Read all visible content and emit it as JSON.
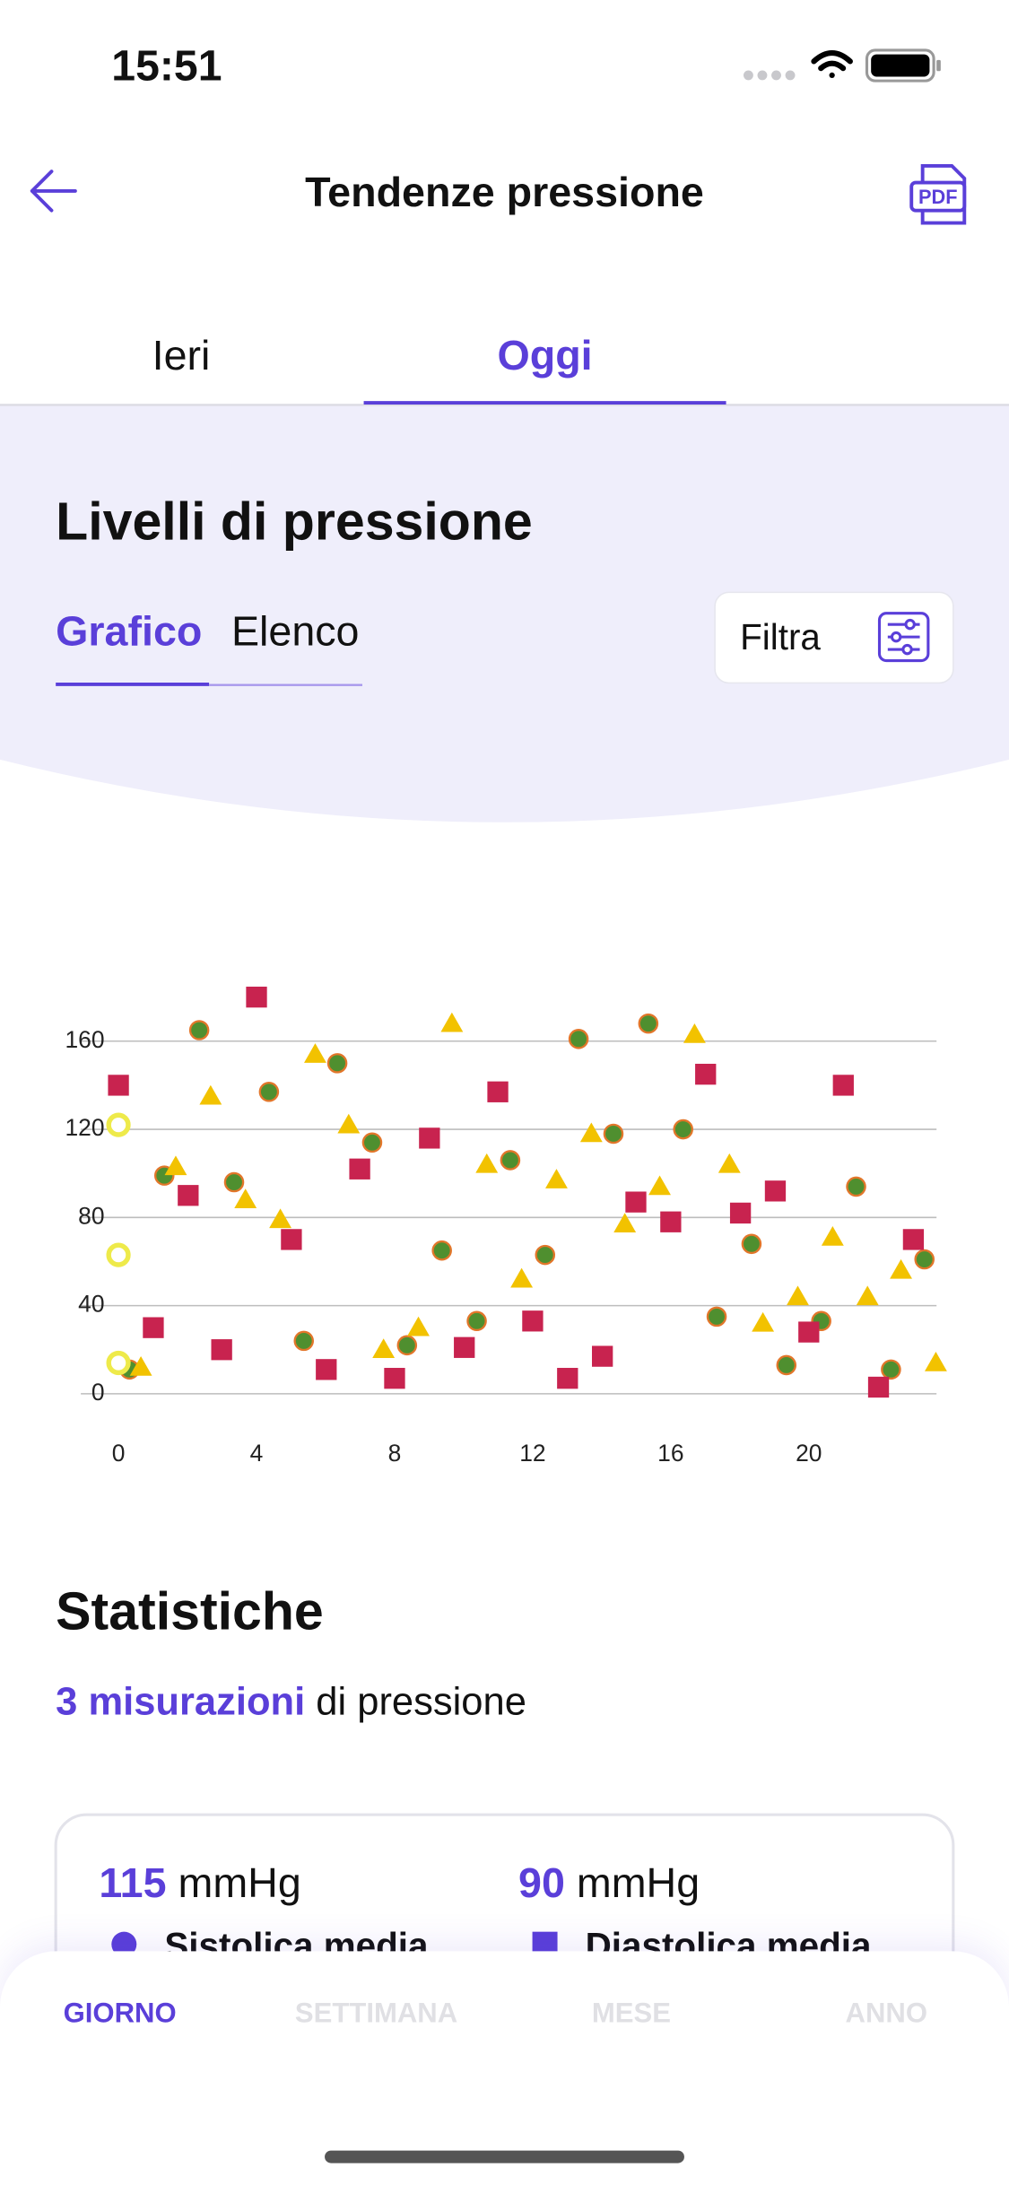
{
  "status_bar": {
    "time": "15:51"
  },
  "header": {
    "title": "Tendenze pressione",
    "pdf": "PDF"
  },
  "day_tabs": [
    "Ieri",
    "Oggi"
  ],
  "section": {
    "title": "Livelli di pressione",
    "view_tabs": [
      "Grafico",
      "Elenco"
    ],
    "filter": "Filtra"
  },
  "chart_data": {
    "type": "scatter",
    "xlim": [
      0,
      23.7
    ],
    "ylim": [
      0,
      185
    ],
    "xticks": [
      0,
      4,
      8,
      12,
      16,
      20
    ],
    "yticks": [
      0,
      40,
      80,
      120,
      160
    ],
    "grid": true,
    "series": [
      {
        "marker": "circle",
        "color": "#4f8f2f",
        "edge_color": "#e2762a",
        "x": [
          0.32,
          1.33,
          2.34,
          3.35,
          4.36,
          5.37,
          6.34,
          7.35,
          8.36,
          9.37,
          10.38,
          11.35,
          12.36,
          13.33,
          14.34,
          15.35,
          16.36,
          17.33,
          18.34,
          19.35,
          20.36,
          21.37,
          22.38,
          23.35
        ],
        "values": [
          11,
          99,
          165,
          96,
          137,
          24,
          150,
          114,
          22,
          65,
          33,
          106,
          63,
          161,
          118,
          168,
          120,
          35,
          68,
          13,
          33,
          94,
          11,
          61
        ]
      },
      {
        "marker": "square",
        "color": "#c8234f",
        "x": [
          0,
          1.01,
          2.02,
          2.99,
          4.0,
          5.01,
          6.02,
          6.99,
          8.0,
          9.01,
          10.02,
          10.99,
          12.0,
          13.01,
          14.02,
          14.99,
          16.0,
          17.01,
          18.02,
          19.03,
          20.0,
          21.0,
          22.02,
          23.03
        ],
        "values": [
          140,
          30,
          90,
          20,
          180,
          70,
          11,
          102,
          7,
          116,
          21,
          137,
          33,
          7,
          17,
          87,
          78,
          145,
          82,
          92,
          28,
          140,
          3,
          70
        ]
      },
      {
        "marker": "triangle",
        "color": "#f2c200",
        "x": [
          0.65,
          1.66,
          2.67,
          3.68,
          4.69,
          5.7,
          6.67,
          7.68,
          8.69,
          9.66,
          10.67,
          11.68,
          12.69,
          13.7,
          14.67,
          15.68,
          16.69,
          17.7,
          18.67,
          19.68,
          20.69,
          21.7,
          22.67,
          23.68
        ],
        "values": [
          12,
          103,
          135,
          88,
          79,
          154,
          122,
          20,
          30,
          168,
          104,
          52,
          97,
          118,
          77,
          94,
          163,
          104,
          32,
          44,
          71,
          44,
          56,
          14
        ]
      },
      {
        "marker": "ring",
        "color": "#eeea4a",
        "x": [
          0,
          0,
          0
        ],
        "values": [
          122,
          63,
          14
        ]
      }
    ]
  },
  "stats": {
    "title": "Statistiche",
    "count_highlight": "3 misurazioni",
    "count_rest": "di pressione",
    "items": [
      {
        "value": 115,
        "unit": "mmHg",
        "label": "Sistolica media"
      },
      {
        "value": 90,
        "unit": "mmHg",
        "label": "Diastolica media"
      }
    ]
  },
  "period_tabs": [
    "GIORNO",
    "SETTIMANA",
    "MESE",
    "ANNO"
  ]
}
